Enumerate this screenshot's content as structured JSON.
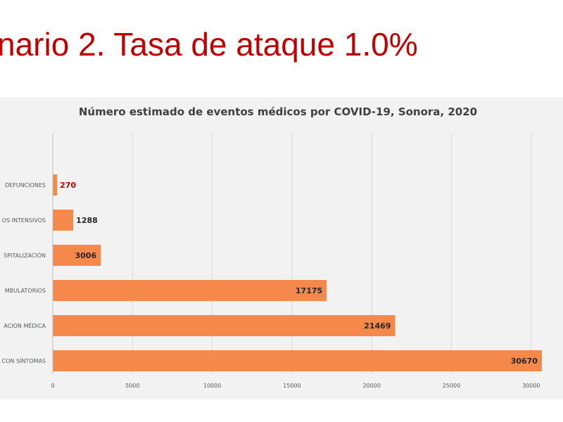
{
  "slide": {
    "title": "nario 2. Tasa de ataque 1.0%"
  },
  "colors": {
    "title": "#c00000",
    "bar": "#f4894b",
    "label": "#262626",
    "highlight_label": "#c00000",
    "panel": "#f2f2f2",
    "grid": "#d9d9d9"
  },
  "chart_data": {
    "type": "bar",
    "orientation": "horizontal",
    "title": "Número estimado de eventos médicos por COVID-19, Sonora, 2020",
    "categories": [
      "DEFUNCIONES",
      "OS INTENSIVOS",
      "SPITALIZACIÓN",
      "MBULATORIOS",
      "ACIÓN MÉDICA",
      "CON SÍNTOMAS"
    ],
    "values": [
      270,
      1288,
      3006,
      17175,
      21469,
      30670
    ],
    "data_labels": [
      "270",
      "1288",
      "3006",
      "17175",
      "21469",
      "30670"
    ],
    "xlim": [
      0,
      30000
    ],
    "xticks": [
      "0",
      "5000",
      "10000",
      "15000",
      "20000",
      "25000",
      "30000"
    ],
    "xlabel": "",
    "ylabel": "",
    "grid": true,
    "legend": "none"
  }
}
